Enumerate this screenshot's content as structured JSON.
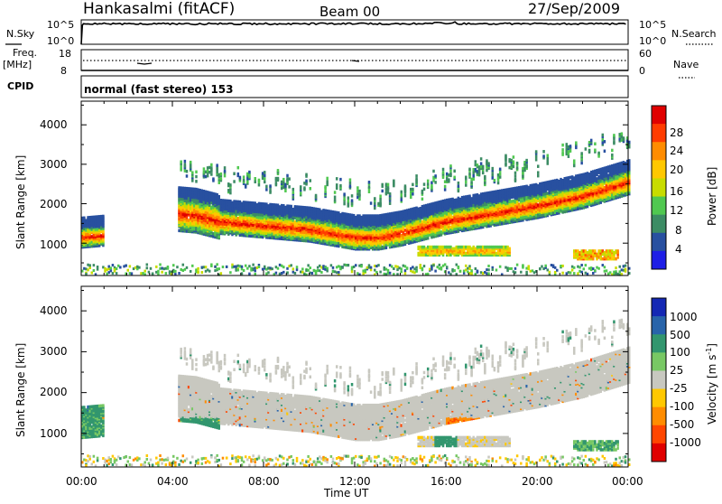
{
  "header": {
    "site": "Hankasalmi (fitACF)",
    "beam": "Beam 00",
    "date": "27/Sep/2009"
  },
  "top_panels": {
    "nsky_label": "N.Sky",
    "nsky_ticks": [
      "10^5",
      "10^0"
    ],
    "nsearch_label": "N.Search",
    "nsearch_ticks": [
      "10^5",
      "10^0"
    ],
    "freq_label": "Freq.",
    "freq_unit": "[MHz]",
    "freq_ticks": [
      "18",
      "8"
    ],
    "nave_label": "Nave",
    "nave_ticks": [
      "60",
      "0"
    ],
    "cpid_label": "CPID",
    "cpid_text": "normal (fast stereo) 153"
  },
  "power_colorbar": {
    "label": "Power [dB]",
    "ticks": [
      "28",
      "24",
      "20",
      "16",
      "12",
      "8",
      "4"
    ],
    "colors": [
      "#e00000",
      "#ff3c00",
      "#ff8c00",
      "#ffc800",
      "#c8dc00",
      "#50c850",
      "#3c8c64",
      "#2850a0",
      "#1e1ee6"
    ]
  },
  "velocity_colorbar": {
    "label": "Velocity [m s",
    "label_sup": "-1",
    "label_end": "]",
    "ticks": [
      "1000",
      "500",
      "100",
      "25",
      "-25",
      "-100",
      "-500",
      "-1000"
    ],
    "colors": [
      "#1428b4",
      "#2864aa",
      "#32966e",
      "#78c864",
      "#c8c8c0",
      "#ffc800",
      "#ff8c00",
      "#ff4600",
      "#e00000"
    ]
  },
  "axes": {
    "ylabel": "Slant Range [km]",
    "xlabel": "Time UT",
    "xticks": [
      "00:00",
      "04:00",
      "08:00",
      "12:00",
      "16:00",
      "20:00",
      "00:00"
    ],
    "yticks": [
      "4000",
      "3000",
      "2000",
      "1000"
    ]
  },
  "chart_data": [
    {
      "type": "heatmap",
      "title": "Power",
      "xlabel": "Time UT",
      "ylabel": "Slant Range [km]",
      "xlim": [
        0,
        24
      ],
      "ylim": [
        180,
        4600
      ],
      "colorbar": "Power [dB]",
      "clim": [
        0,
        30
      ],
      "main_band_center_km": [
        [
          0.0,
          1150
        ],
        [
          1.0,
          1200
        ],
        [
          4.0,
          1750
        ],
        [
          5.0,
          1700
        ],
        [
          6.0,
          1550
        ],
        [
          8.0,
          1450
        ],
        [
          10.0,
          1350
        ],
        [
          12.0,
          1150
        ],
        [
          13.0,
          1150
        ],
        [
          14.0,
          1250
        ],
        [
          16.0,
          1550
        ],
        [
          18.0,
          1750
        ],
        [
          20.0,
          1950
        ],
        [
          22.0,
          2200
        ],
        [
          24.0,
          2550
        ]
      ],
      "secondary_band": {
        "x_range": [
          14.7,
          18.8
        ],
        "range_km": [
          700,
          900
        ],
        "peak_db": 24
      },
      "late_patch": {
        "x_range": [
          21.5,
          23.5
        ],
        "range_km": [
          600,
          800
        ],
        "peak_db": 26
      }
    },
    {
      "type": "heatmap",
      "title": "Velocity",
      "xlabel": "Time UT",
      "ylabel": "Slant Range [km]",
      "xlim": [
        0,
        24
      ],
      "ylim": [
        180,
        4600
      ],
      "colorbar": "Velocity [m s-1]",
      "clim": [
        -1000,
        1000
      ],
      "dominant_value": 0,
      "notes": [
        "ground scatter band near zero velocity",
        "negative velocities near 16:00-18:00 at 800-1500 km",
        "positive velocities near 04:00-06:00 at 700-1400 km"
      ]
    }
  ]
}
